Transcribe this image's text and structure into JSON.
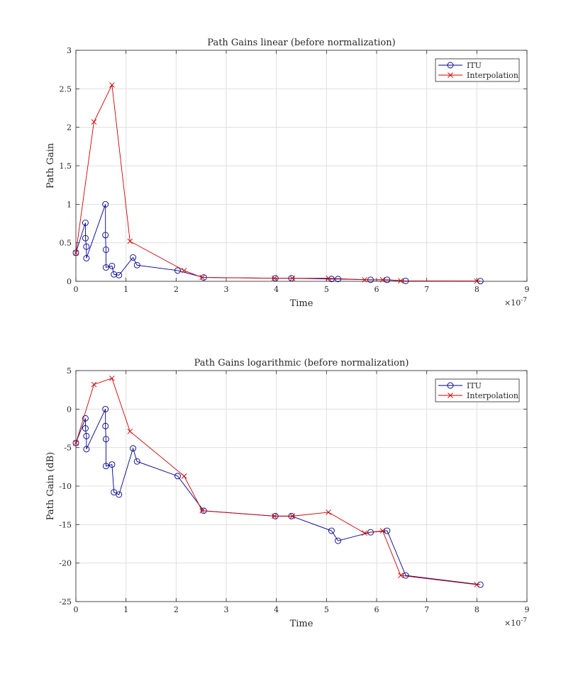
{
  "chart_data": [
    {
      "type": "line",
      "title": "Path Gains linear (before normalization)",
      "xlabel": "Time",
      "ylabel": "Path Gain",
      "x_exponent_label": "×10",
      "x_exponent_power": "-7",
      "xlim": [
        0,
        9
      ],
      "ylim": [
        0,
        3
      ],
      "xticks": [
        0,
        1,
        2,
        3,
        4,
        5,
        6,
        7,
        8,
        9
      ],
      "yticks": [
        0,
        0.5,
        1,
        1.5,
        2,
        2.5,
        3
      ],
      "xtick_labels": [
        "0",
        "1",
        "2",
        "3",
        "4",
        "5",
        "6",
        "7",
        "8",
        "9"
      ],
      "ytick_labels": [
        "0",
        "0.5",
        "1",
        "1.5",
        "2",
        "2.5",
        "3"
      ],
      "grid": true,
      "legend_position": "top-right",
      "series": [
        {
          "name": "ITU",
          "color": "#00008B",
          "marker": "circle",
          "x": [
            0,
            0.19,
            0.19,
            0.21,
            0.21,
            0.59,
            0.59,
            0.6,
            0.6,
            0.72,
            0.76,
            0.86,
            1.14,
            1.22,
            2.03,
            2.55,
            3.98,
            4.3,
            5.1,
            5.23,
            5.88,
            6.21,
            6.58,
            8.07
          ],
          "y": [
            0.37,
            0.76,
            0.56,
            0.45,
            0.3,
            1.0,
            0.6,
            0.41,
            0.18,
            0.2,
            0.09,
            0.08,
            0.31,
            0.21,
            0.14,
            0.05,
            0.04,
            0.04,
            0.03,
            0.03,
            0.02,
            0.02,
            0.005,
            0.003
          ]
        },
        {
          "name": "Interpolation",
          "color": "#CC0000",
          "marker": "x",
          "x": [
            0,
            0.36,
            0.72,
            1.08,
            2.16,
            2.52,
            3.96,
            4.32,
            5.04,
            5.76,
            6.12,
            6.48,
            8.0
          ],
          "y": [
            0.37,
            2.07,
            2.55,
            0.52,
            0.14,
            0.05,
            0.04,
            0.04,
            0.04,
            0.02,
            0.02,
            0.006,
            0.003
          ]
        }
      ]
    },
    {
      "type": "line",
      "title": "Path Gains logarithmic (before normalization)",
      "xlabel": "Time",
      "ylabel": "Path Gain (dB)",
      "x_exponent_label": "×10",
      "x_exponent_power": "-7",
      "xlim": [
        0,
        9
      ],
      "ylim": [
        -25,
        5
      ],
      "xticks": [
        0,
        1,
        2,
        3,
        4,
        5,
        6,
        7,
        8,
        9
      ],
      "yticks": [
        -25,
        -20,
        -15,
        -10,
        -5,
        0,
        5
      ],
      "xtick_labels": [
        "0",
        "1",
        "2",
        "3",
        "4",
        "5",
        "6",
        "7",
        "8",
        "9"
      ],
      "ytick_labels": [
        "-25",
        "-20",
        "-15",
        "-10",
        "-5",
        "0",
        "5"
      ],
      "grid": true,
      "legend_position": "top-right",
      "series": [
        {
          "name": "ITU",
          "color": "#00008B",
          "marker": "circle",
          "x": [
            0,
            0.19,
            0.19,
            0.21,
            0.21,
            0.59,
            0.59,
            0.6,
            0.6,
            0.72,
            0.76,
            0.86,
            1.14,
            1.22,
            2.03,
            2.55,
            3.98,
            4.3,
            5.1,
            5.23,
            5.88,
            6.21,
            6.58,
            8.07
          ],
          "y": [
            -4.4,
            -1.2,
            -2.5,
            -3.5,
            -5.2,
            0.0,
            -2.2,
            -3.9,
            -7.4,
            -7.2,
            -10.8,
            -11.1,
            -5.1,
            -6.8,
            -8.7,
            -13.2,
            -13.9,
            -13.9,
            -15.8,
            -17.1,
            -16.0,
            -15.8,
            -21.6,
            -22.8
          ]
        },
        {
          "name": "Interpolation",
          "color": "#CC0000",
          "marker": "x",
          "x": [
            0,
            0.36,
            0.72,
            1.08,
            2.16,
            2.52,
            3.96,
            4.32,
            5.04,
            5.76,
            6.12,
            6.48,
            8.0
          ],
          "y": [
            -4.4,
            3.2,
            4.0,
            -2.9,
            -8.7,
            -13.2,
            -13.9,
            -13.9,
            -13.4,
            -16.1,
            -15.8,
            -21.6,
            -22.8
          ]
        }
      ]
    }
  ]
}
